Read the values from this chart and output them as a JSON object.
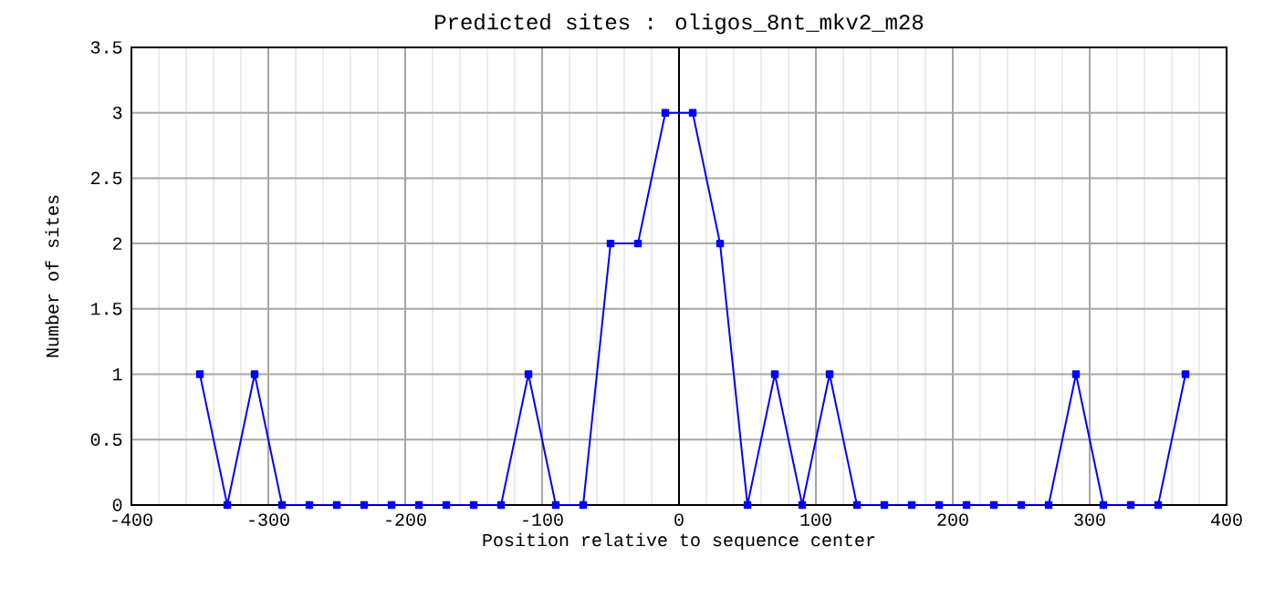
{
  "chart_data": {
    "type": "line",
    "title": "Predicted sites : oligos_8nt_mkv2_m28",
    "xlabel": "Position relative to sequence center",
    "ylabel": "Number of sites",
    "x": [
      -350,
      -330,
      -310,
      -290,
      -270,
      -250,
      -230,
      -210,
      -190,
      -170,
      -150,
      -130,
      -110,
      -90,
      -70,
      -50,
      -30,
      -10,
      10,
      30,
      50,
      70,
      90,
      110,
      130,
      150,
      170,
      190,
      210,
      230,
      250,
      270,
      290,
      310,
      330,
      350,
      370
    ],
    "series": [
      {
        "color": "#0000ff",
        "values": [
          1,
          0,
          1,
          0,
          0,
          0,
          0,
          0,
          0,
          0,
          0,
          0,
          1,
          0,
          0,
          2,
          2,
          3,
          3,
          2,
          0,
          1,
          0,
          1,
          0,
          0,
          0,
          0,
          0,
          0,
          0,
          0,
          1,
          0,
          0,
          0,
          1
        ]
      }
    ],
    "xlim": [
      -400,
      400
    ],
    "xticks": [
      -400,
      -300,
      -200,
      -100,
      0,
      100,
      200,
      300,
      400
    ],
    "ylim": [
      0,
      3.5
    ],
    "yticks": [
      0,
      0.5,
      1,
      1.5,
      2,
      2.5,
      3,
      3.5
    ],
    "grid": true,
    "marker": "square",
    "line_style": "solid",
    "ref_lines": [
      {
        "axis": "x",
        "value": 0,
        "color": "#000000"
      }
    ]
  }
}
